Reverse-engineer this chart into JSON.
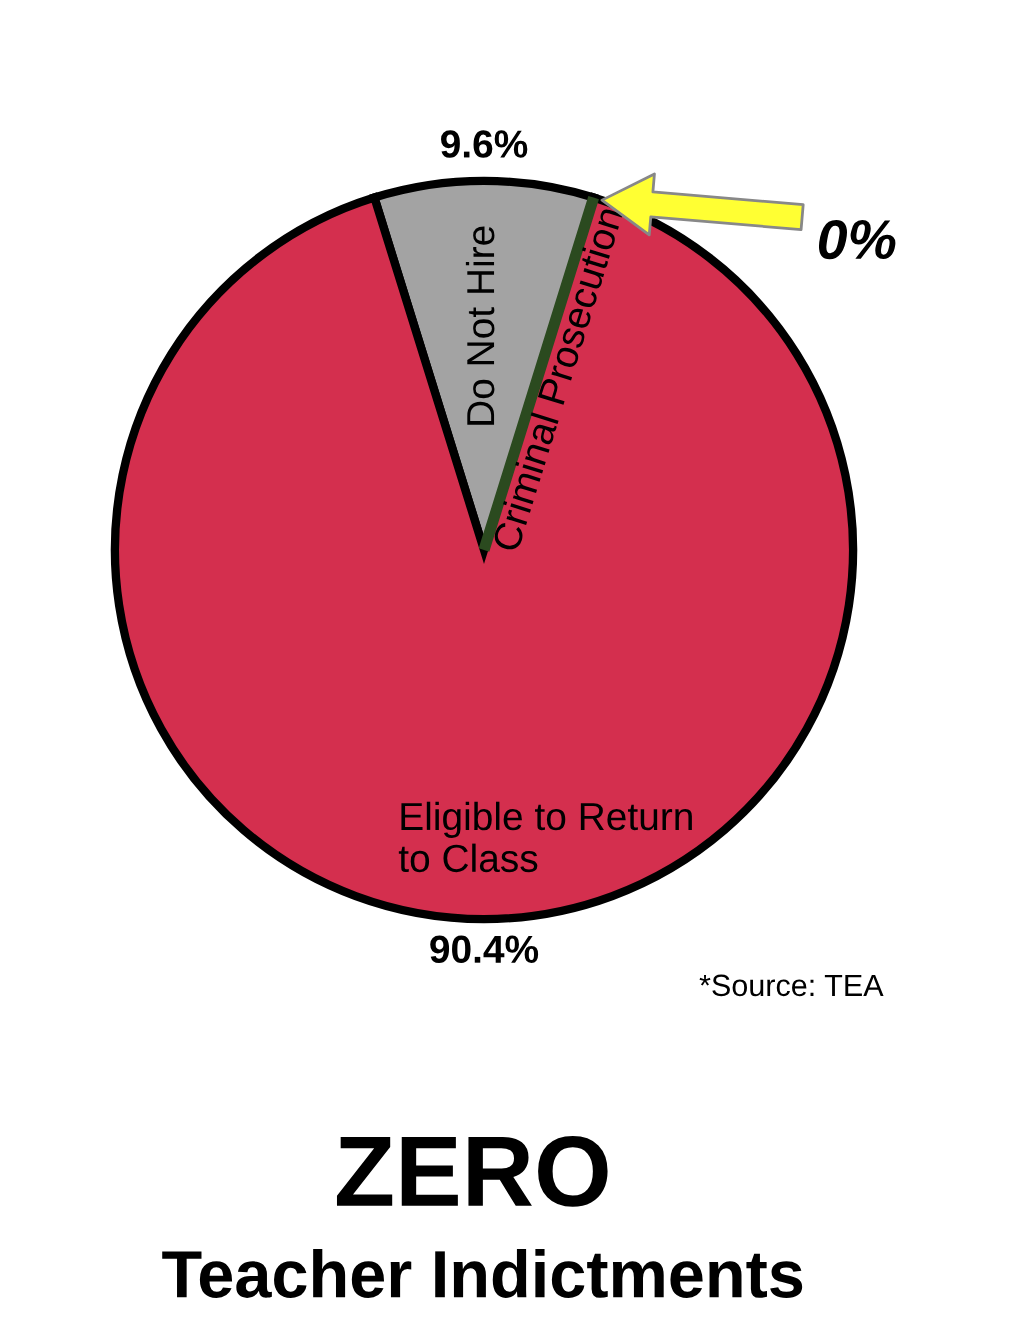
{
  "chart_data": {
    "type": "pie",
    "title": "ZERO",
    "subtitle": "Teacher Indictments",
    "categories": [
      "Do Not Hire",
      "Criminal Prosecution",
      "Eligible to Return\nto Class"
    ],
    "values": [
      9.6,
      0,
      90.4
    ],
    "value_labels": [
      "9.6%",
      "0%",
      "90.4%"
    ],
    "colors": [
      "#a3a3a3",
      "#2b4a1f",
      "#d42f4e"
    ],
    "annotations": [
      "*Source: TEA"
    ]
  }
}
